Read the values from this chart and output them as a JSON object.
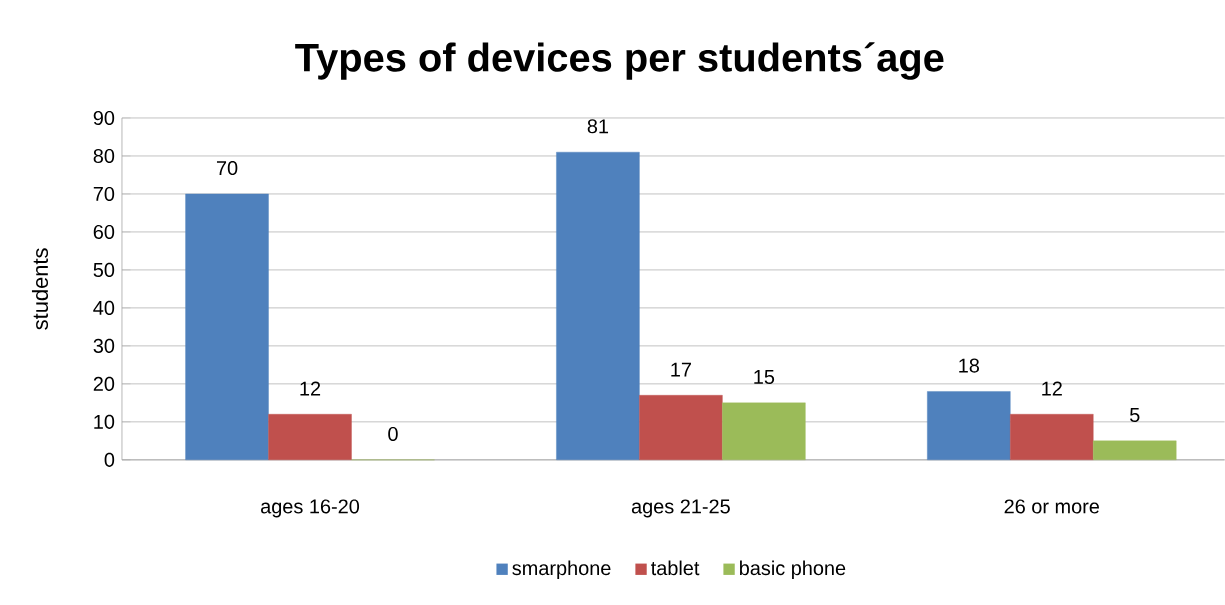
{
  "chart_data": {
    "type": "bar",
    "title": "Types of devices per students´age",
    "ylabel": "students",
    "categories": [
      "ages 16-20",
      "ages 21-25",
      "26 or more"
    ],
    "series": [
      {
        "name": "smarphone",
        "color": "#4f81bd",
        "values": [
          70,
          81,
          18
        ]
      },
      {
        "name": "tablet",
        "color": "#c0504d",
        "values": [
          12,
          17,
          12
        ]
      },
      {
        "name": "basic phone",
        "color": "#9bbb59",
        "values": [
          0,
          15,
          5
        ]
      }
    ],
    "ylim": [
      0,
      90
    ],
    "yticks": [
      0,
      10,
      20,
      30,
      40,
      50,
      60,
      70,
      80,
      90
    ],
    "grid": "y",
    "legend": "bottom",
    "data_labels": true
  }
}
